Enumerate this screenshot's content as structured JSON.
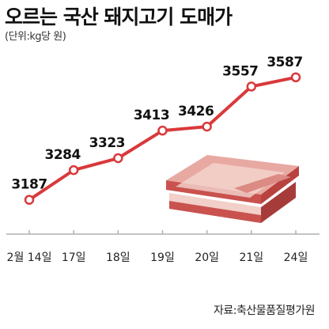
{
  "header": {
    "title": "오르는 국산 돼지고기 도매가",
    "unit": "(단위:kg당 원)"
  },
  "source": "자료:축산물품질평가원",
  "colors": {
    "line": "#d9393b",
    "axis": "#b0b0b0"
  },
  "chart_data": {
    "type": "line",
    "title": "오르는 국산 돼지고기 도매가",
    "ylabel": "kg당 원",
    "categories": [
      "2월 14일",
      "17일",
      "18일",
      "19일",
      "20일",
      "21일",
      "24일"
    ],
    "values": [
      3187,
      3284,
      3323,
      3413,
      3426,
      3557,
      3587
    ],
    "ylim": [
      3150,
      3620
    ],
    "grid": false,
    "legend": "none"
  }
}
